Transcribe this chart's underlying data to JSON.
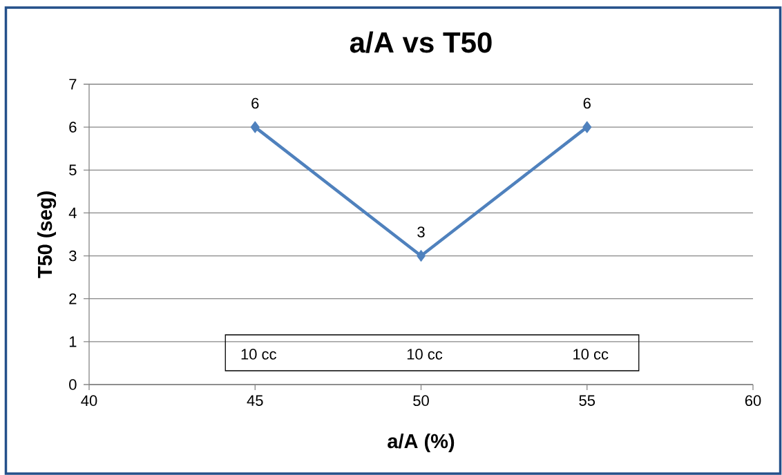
{
  "chart_data": {
    "type": "line",
    "title": "a/A vs T50",
    "xlabel": "a/A (%)",
    "ylabel": "T50 (seg)",
    "x": [
      45,
      50,
      55
    ],
    "values": [
      6,
      3,
      6
    ],
    "color": "#4f81bd",
    "marker": "diamond",
    "data_labels": true,
    "xlim": [
      40,
      60
    ],
    "xticks": [
      40,
      45,
      50,
      55,
      60
    ],
    "ylim": [
      0,
      7
    ],
    "yticks": [
      0,
      1,
      2,
      3,
      4,
      5,
      6,
      7
    ],
    "grid": "y",
    "annotations": [
      "10 cc",
      "10 cc",
      "10 cc"
    ]
  }
}
